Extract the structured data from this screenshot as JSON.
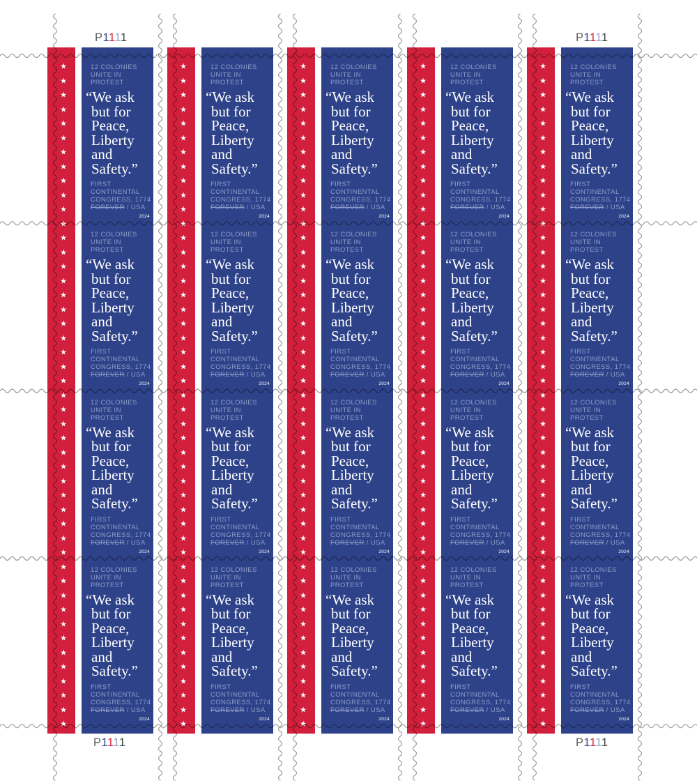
{
  "stamp": {
    "header_lines": [
      "12 COLONIES",
      "UNITE IN",
      "PROTEST"
    ],
    "quote_lines": [
      "“We ask",
      "but for",
      "Peace,",
      "Liberty",
      "and",
      "Safety.”"
    ],
    "footer_lines": [
      "FIRST",
      "CONTINENTAL",
      "CONGRESS, 1774"
    ],
    "denomination": {
      "struck": "FOREVER",
      "rest": " / USA"
    },
    "year": "2024"
  },
  "plate_number": {
    "text": "P1111",
    "chars": [
      {
        "ch": "P",
        "color": "#5B5C5E"
      },
      {
        "ch": "1",
        "color": "#2F4391"
      },
      {
        "ch": "1",
        "color": "#D5203B"
      },
      {
        "ch": "1",
        "color": "#94A0CD"
      },
      {
        "ch": "1",
        "color": "#3F4042"
      }
    ],
    "positions": [
      "top-left",
      "top-right",
      "bottom-left",
      "bottom-right"
    ]
  },
  "grid": {
    "columns": 5,
    "rows": 4,
    "stars_per_stripe": 47,
    "star_glyph": "★"
  },
  "colors": {
    "stripe_red": "#D2203C",
    "panel_blue": "#2E4289",
    "muted_text": "#8D9CC9",
    "quote_white": "#FFFFFF",
    "die_cut_line": "#9B9B9B",
    "background": "#FFFFFF"
  }
}
